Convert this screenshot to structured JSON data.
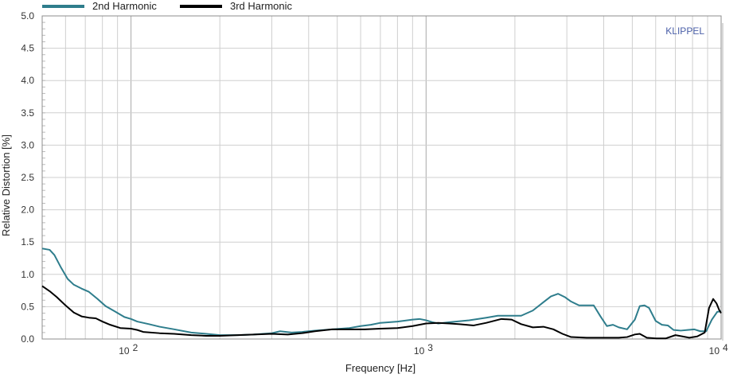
{
  "chart_data": {
    "type": "line",
    "xlabel": "Frequency  [Hz]",
    "ylabel": "Relative Distortion  [%]",
    "watermark": "KLIPPEL",
    "x_scale": "log",
    "xlim": [
      50,
      10000
    ],
    "ylim": [
      0,
      5
    ],
    "grid": true,
    "legend_position": "top-left",
    "y_ticks": [
      "0.0",
      "0.5",
      "1.0",
      "1.5",
      "2.0",
      "2.5",
      "3.0",
      "3.5",
      "4.0",
      "4.5",
      "5.0"
    ],
    "x_ticks": [
      {
        "value": 100,
        "base": "10",
        "exp": "2"
      },
      {
        "value": 1000,
        "base": "10",
        "exp": "3"
      },
      {
        "value": 10000,
        "base": "10",
        "exp": "4"
      }
    ],
    "series": [
      {
        "name": "2nd Harmonic",
        "color": "#2e7d8c",
        "points": [
          [
            50,
            1.4
          ],
          [
            53,
            1.38
          ],
          [
            55,
            1.3
          ],
          [
            58,
            1.1
          ],
          [
            61,
            0.93
          ],
          [
            64,
            0.84
          ],
          [
            68,
            0.78
          ],
          [
            72,
            0.73
          ],
          [
            77,
            0.62
          ],
          [
            82,
            0.51
          ],
          [
            88,
            0.43
          ],
          [
            95,
            0.34
          ],
          [
            100,
            0.31
          ],
          [
            105,
            0.27
          ],
          [
            115,
            0.23
          ],
          [
            125,
            0.19
          ],
          [
            140,
            0.15
          ],
          [
            160,
            0.1
          ],
          [
            180,
            0.08
          ],
          [
            200,
            0.06
          ],
          [
            230,
            0.06
          ],
          [
            260,
            0.07
          ],
          [
            280,
            0.08
          ],
          [
            300,
            0.09
          ],
          [
            320,
            0.12
          ],
          [
            350,
            0.1
          ],
          [
            380,
            0.11
          ],
          [
            420,
            0.13
          ],
          [
            480,
            0.15
          ],
          [
            550,
            0.17
          ],
          [
            600,
            0.2
          ],
          [
            650,
            0.22
          ],
          [
            700,
            0.25
          ],
          [
            800,
            0.27
          ],
          [
            900,
            0.3
          ],
          [
            950,
            0.31
          ],
          [
            1000,
            0.29
          ],
          [
            1050,
            0.26
          ],
          [
            1100,
            0.24
          ],
          [
            1200,
            0.26
          ],
          [
            1400,
            0.29
          ],
          [
            1600,
            0.33
          ],
          [
            1750,
            0.36
          ],
          [
            1900,
            0.36
          ],
          [
            2100,
            0.36
          ],
          [
            2300,
            0.44
          ],
          [
            2500,
            0.57
          ],
          [
            2650,
            0.66
          ],
          [
            2800,
            0.7
          ],
          [
            2950,
            0.65
          ],
          [
            3100,
            0.58
          ],
          [
            3300,
            0.52
          ],
          [
            3500,
            0.52
          ],
          [
            3700,
            0.52
          ],
          [
            3900,
            0.35
          ],
          [
            4100,
            0.2
          ],
          [
            4300,
            0.22
          ],
          [
            4500,
            0.18
          ],
          [
            4800,
            0.15
          ],
          [
            5100,
            0.3
          ],
          [
            5300,
            0.51
          ],
          [
            5500,
            0.52
          ],
          [
            5700,
            0.48
          ],
          [
            6000,
            0.28
          ],
          [
            6300,
            0.22
          ],
          [
            6600,
            0.21
          ],
          [
            6900,
            0.14
          ],
          [
            7300,
            0.13
          ],
          [
            7700,
            0.14
          ],
          [
            8100,
            0.15
          ],
          [
            8500,
            0.12
          ],
          [
            8900,
            0.12
          ],
          [
            9300,
            0.3
          ],
          [
            9700,
            0.42
          ],
          [
            10000,
            0.43
          ]
        ]
      },
      {
        "name": "3rd Harmonic",
        "color": "#000000",
        "points": [
          [
            50,
            0.82
          ],
          [
            53,
            0.74
          ],
          [
            56,
            0.65
          ],
          [
            60,
            0.52
          ],
          [
            64,
            0.41
          ],
          [
            68,
            0.35
          ],
          [
            72,
            0.33
          ],
          [
            76,
            0.32
          ],
          [
            80,
            0.27
          ],
          [
            85,
            0.22
          ],
          [
            92,
            0.17
          ],
          [
            100,
            0.16
          ],
          [
            105,
            0.14
          ],
          [
            110,
            0.11
          ],
          [
            125,
            0.09
          ],
          [
            140,
            0.08
          ],
          [
            160,
            0.06
          ],
          [
            180,
            0.05
          ],
          [
            200,
            0.05
          ],
          [
            230,
            0.06
          ],
          [
            260,
            0.07
          ],
          [
            300,
            0.08
          ],
          [
            340,
            0.07
          ],
          [
            380,
            0.09
          ],
          [
            420,
            0.12
          ],
          [
            480,
            0.15
          ],
          [
            550,
            0.15
          ],
          [
            620,
            0.15
          ],
          [
            700,
            0.16
          ],
          [
            800,
            0.17
          ],
          [
            900,
            0.2
          ],
          [
            1000,
            0.24
          ],
          [
            1100,
            0.25
          ],
          [
            1200,
            0.24
          ],
          [
            1300,
            0.23
          ],
          [
            1450,
            0.21
          ],
          [
            1600,
            0.25
          ],
          [
            1800,
            0.31
          ],
          [
            1950,
            0.3
          ],
          [
            2100,
            0.23
          ],
          [
            2300,
            0.18
          ],
          [
            2500,
            0.19
          ],
          [
            2700,
            0.15
          ],
          [
            2900,
            0.08
          ],
          [
            3100,
            0.03
          ],
          [
            3500,
            0.02
          ],
          [
            4000,
            0.02
          ],
          [
            4500,
            0.02
          ],
          [
            4800,
            0.03
          ],
          [
            5100,
            0.07
          ],
          [
            5300,
            0.08
          ],
          [
            5600,
            0.02
          ],
          [
            6000,
            0.01
          ],
          [
            6500,
            0.01
          ],
          [
            7000,
            0.06
          ],
          [
            7400,
            0.04
          ],
          [
            7800,
            0.02
          ],
          [
            8300,
            0.04
          ],
          [
            8800,
            0.1
          ],
          [
            9100,
            0.48
          ],
          [
            9400,
            0.62
          ],
          [
            9650,
            0.55
          ],
          [
            9850,
            0.45
          ],
          [
            10000,
            0.4
          ]
        ]
      }
    ]
  }
}
